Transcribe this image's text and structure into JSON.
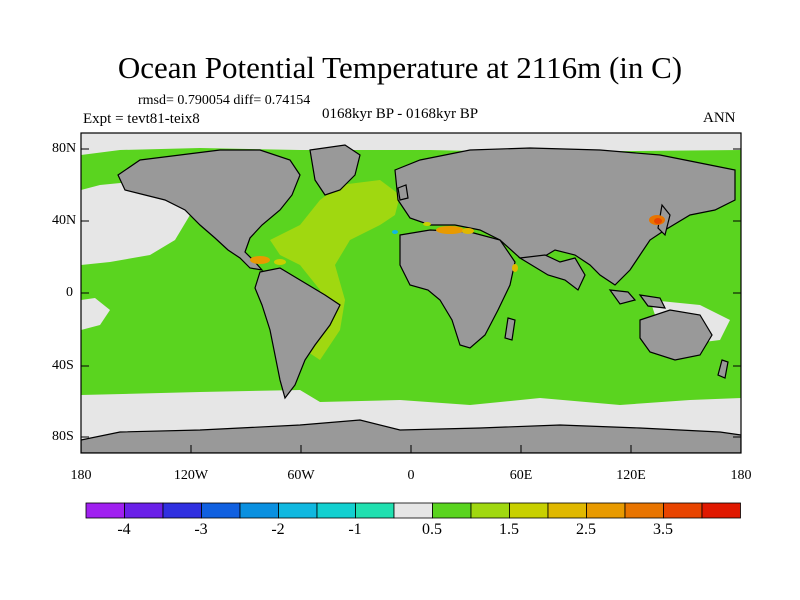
{
  "title": "Ocean Potential Temperature at 2116m (in C)",
  "stats": "rmsd= 0.790054 diff= 0.74154",
  "experiment": "Expt = tevt81-teix8",
  "period": "0168kyr BP - 0168kyr BP",
  "season": "ANN",
  "lat_labels": [
    "80N",
    "40N",
    "0",
    "40S",
    "80S"
  ],
  "lon_labels": [
    "180",
    "120W",
    "60W",
    "0",
    "60E",
    "120E",
    "180"
  ],
  "colorbar": {
    "colors": [
      "#a020f0",
      "#6a20e8",
      "#3030e0",
      "#1060e0",
      "#0a90e0",
      "#10b8e0",
      "#12d0d0",
      "#20e0b0",
      "#e6e6e6",
      "#5ad41f",
      "#a0d810",
      "#c8d000",
      "#e0b800",
      "#e89a00",
      "#e87400",
      "#e84400",
      "#e01800"
    ],
    "labels": [
      "-4",
      "-3",
      "-2",
      "-1",
      "0.5",
      "1.5",
      "2.5",
      "3.5"
    ]
  },
  "map_colors": {
    "land": "#999999",
    "ocean_main": "#5ad41f",
    "ocean_near_zero": "#e6e6e6",
    "north_atlantic": "#a0d810",
    "warm_spots": "#e89a00",
    "hot_spot": "#e84400"
  }
}
